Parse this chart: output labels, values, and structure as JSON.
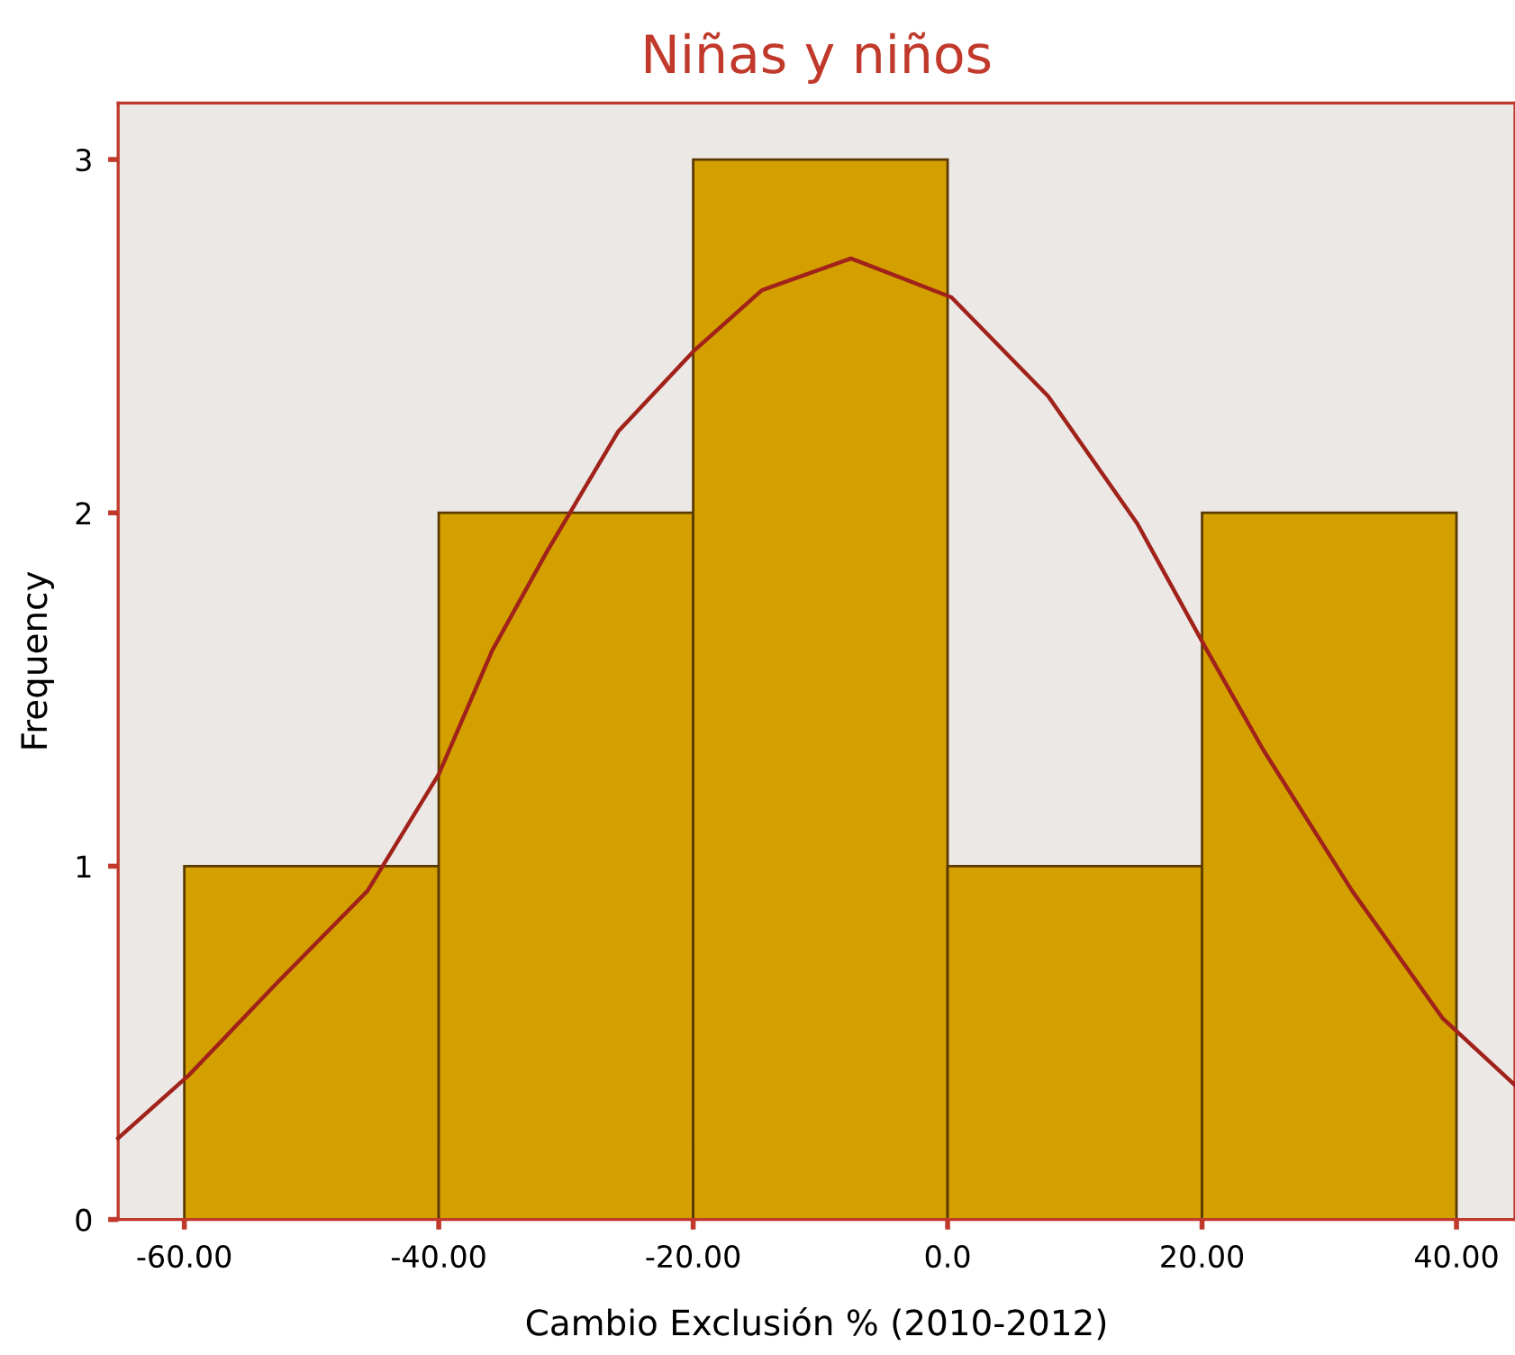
{
  "chart_data": {
    "type": "histogram",
    "title": "Niñas y niños",
    "xlabel": "Cambio Exclusión % (2010-2012)",
    "ylabel": "Frequency",
    "bins": [
      -60,
      -40,
      -20,
      0,
      20,
      40
    ],
    "values": [
      1,
      2,
      3,
      1,
      2
    ],
    "color": "#d4a000",
    "series": [
      {
        "type": "line",
        "color": "#a0221a",
        "x": [
          -65.2,
          -59.6,
          -52.7,
          -45.6,
          -40,
          -35.8,
          -31.5,
          -25.9,
          -19.9,
          -14.6,
          -7.6,
          0.3,
          7.9,
          14.9,
          20.4,
          24.8,
          31.8,
          38.9,
          44.6
        ],
        "values": [
          0.23,
          0.41,
          0.67,
          0.93,
          1.26,
          1.61,
          1.89,
          2.23,
          2.46,
          2.63,
          2.72,
          2.61,
          2.33,
          1.97,
          1.61,
          1.33,
          0.93,
          0.57,
          0.38
        ]
      }
    ],
    "xlim": [
      -65.2,
      44.6
    ],
    "ylim": [
      0,
      3.16
    ],
    "xticks": [
      {
        "value": -60,
        "label": "-60.00"
      },
      {
        "value": -40,
        "label": "-40.00"
      },
      {
        "value": -20,
        "label": "-20.00"
      },
      {
        "value": 0,
        "label": "0.0"
      },
      {
        "value": 20,
        "label": "20.00"
      },
      {
        "value": 40,
        "label": "40.00"
      }
    ],
    "yticks": [
      0,
      1,
      2,
      3
    ],
    "grid": false,
    "legend": false
  }
}
